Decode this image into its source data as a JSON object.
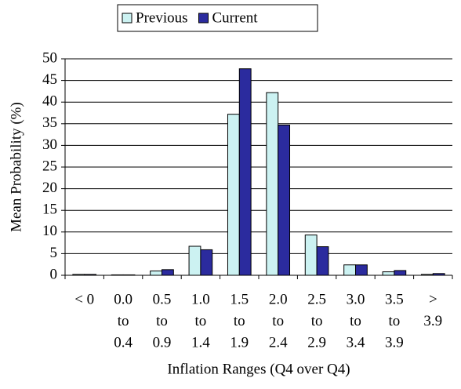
{
  "chart_data": {
    "type": "bar",
    "x_label": "Inflation Ranges (Q4 over Q4)",
    "y_label": "Mean Probability (%)",
    "categories": [
      [
        "< 0"
      ],
      [
        "0.0",
        "to",
        "0.4"
      ],
      [
        "0.5",
        "to",
        "0.9"
      ],
      [
        "1.0",
        "to",
        "1.4"
      ],
      [
        "1.5",
        "to",
        "1.9"
      ],
      [
        "2.0",
        "to",
        "2.4"
      ],
      [
        "2.5",
        "to",
        "2.9"
      ],
      [
        "3.0",
        "to",
        "3.4"
      ],
      [
        "3.5",
        "to",
        "3.9"
      ],
      [
        ">",
        "3.9"
      ]
    ],
    "series": [
      {
        "name": "Previous",
        "color": "#ccf2f2",
        "values": [
          0.2,
          0.1,
          1.0,
          6.7,
          37.2,
          42.2,
          9.3,
          2.4,
          0.8,
          0.2
        ]
      },
      {
        "name": "Current",
        "color": "#2b2b9e",
        "values": [
          0.2,
          0.1,
          1.3,
          5.9,
          47.7,
          34.7,
          6.6,
          2.4,
          1.1,
          0.4
        ]
      }
    ],
    "ylim": [
      0,
      50
    ],
    "yticks": [
      0,
      5,
      10,
      15,
      20,
      25,
      30,
      35,
      40,
      45,
      50
    ],
    "grid": true,
    "legend": "top"
  }
}
